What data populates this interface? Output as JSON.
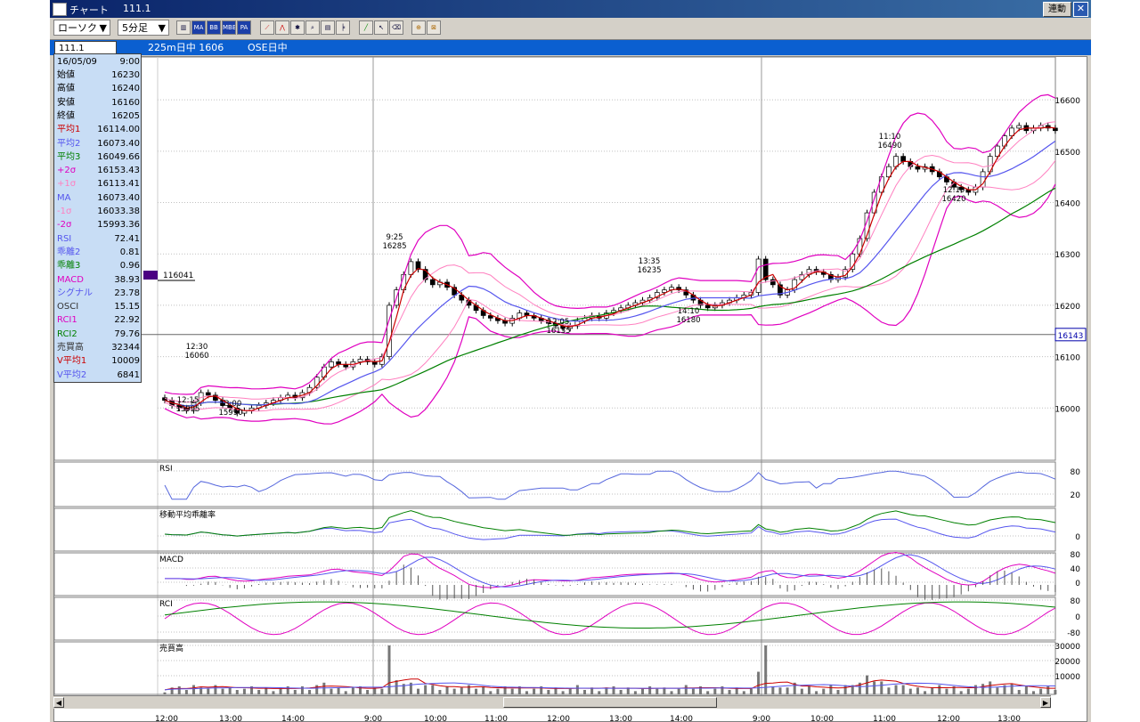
{
  "window": {
    "title": "チャート",
    "symbol": "111.1",
    "linked_button": "連動",
    "close_icon": "close-icon"
  },
  "toolbar": {
    "chart_type": "ローソク",
    "timeframe": "5分足",
    "tool_icons": [
      "period-icon",
      "ma-icon",
      "bb-icon",
      "mbb-icon",
      "pa-icon",
      "line-chart-icon",
      "fibo-icon",
      "zoom-icon",
      "search-icon",
      "print-icon",
      "draw-trend-icon",
      "pointer-icon",
      "eraser-icon",
      "crosshair-icon",
      "clear-drawings-icon"
    ],
    "tool_labels": {
      "ma": "MA",
      "bb": "BB",
      "mbb": "MBB",
      "pa": "PA"
    }
  },
  "subbar": {
    "symbol_input": "111.1",
    "contract": "225m日中 1606",
    "market": "OSE日中"
  },
  "info": {
    "date": "16/05/09",
    "time": "9:00",
    "rows": [
      {
        "k": "始値",
        "v": "16230",
        "color": "#000000"
      },
      {
        "k": "高値",
        "v": "16240",
        "color": "#000000"
      },
      {
        "k": "安値",
        "v": "16160",
        "color": "#000000"
      },
      {
        "k": "終値",
        "v": "16205",
        "color": "#000000"
      },
      {
        "k": "平均1",
        "v": "16114.00",
        "color": "#cc0000"
      },
      {
        "k": "平均2",
        "v": "16073.40",
        "color": "#5555ee"
      },
      {
        "k": "平均3",
        "v": "16049.66",
        "color": "#008000"
      },
      {
        "k": "+2σ",
        "v": "16153.43",
        "color": "#e000c0"
      },
      {
        "k": "+1σ",
        "v": "16113.41",
        "color": "#ff80c0"
      },
      {
        "k": "MA",
        "v": "16073.40",
        "color": "#5555ee"
      },
      {
        "k": "-1σ",
        "v": "16033.38",
        "color": "#ff80c0"
      },
      {
        "k": "-2σ",
        "v": "15993.36",
        "color": "#e000c0"
      },
      {
        "k": "RSI",
        "v": "72.41",
        "color": "#5555ee"
      },
      {
        "k": "乖離2",
        "v": "0.81",
        "color": "#5555ee"
      },
      {
        "k": "乖離3",
        "v": "0.96",
        "color": "#008000"
      },
      {
        "k": "MACD",
        "v": "38.93",
        "color": "#e000c0"
      },
      {
        "k": "シグナル",
        "v": "23.78",
        "color": "#5555ee"
      },
      {
        "k": "OSCI",
        "v": "15.15",
        "color": "#333333"
      },
      {
        "k": "RCI1",
        "v": "22.92",
        "color": "#e000c0"
      },
      {
        "k": "RCI2",
        "v": "79.76",
        "color": "#008000"
      },
      {
        "k": "売買高",
        "v": "32344",
        "color": "#333333"
      },
      {
        "k": "V平均1",
        "v": "10009",
        "color": "#cc0000"
      },
      {
        "k": "V平均2",
        "v": "6841",
        "color": "#5555ee"
      }
    ]
  },
  "chart_data": {
    "type": "candlestick",
    "price_axis": {
      "ticks": [
        "16600",
        "16500",
        "16400",
        "16300",
        "16200",
        "16100",
        "16000"
      ],
      "range": [
        15900,
        16680
      ],
      "current_price": "16143",
      "marker_label": "116041"
    },
    "x_labels": [
      "12:00",
      "13:00",
      "14:00",
      "9:00",
      "10:00",
      "11:00",
      "12:00",
      "13:00",
      "14:00",
      "9:00",
      "10:00",
      "11:00",
      "12:00",
      "13:00"
    ],
    "close_path": [
      16015,
      16005,
      16000,
      15995,
      16010,
      16030,
      16025,
      16015,
      16005,
      16000,
      15990,
      15995,
      16000,
      16005,
      16010,
      16015,
      16020,
      16025,
      16020,
      16030,
      16040,
      16060,
      16080,
      16090,
      16085,
      16080,
      16090,
      16095,
      16090,
      16085,
      16100,
      16200,
      16230,
      16260,
      16285,
      16270,
      16250,
      16240,
      16245,
      16235,
      16220,
      16210,
      16200,
      16190,
      16180,
      16175,
      16170,
      16165,
      16175,
      16185,
      16180,
      16175,
      16170,
      16165,
      16160,
      16155,
      16160,
      16170,
      16175,
      16180,
      16175,
      16185,
      16190,
      16195,
      16200,
      16205,
      16210,
      16215,
      16225,
      16230,
      16235,
      16230,
      16220,
      16210,
      16200,
      16195,
      16200,
      16205,
      16210,
      16215,
      16220,
      16225,
      16290,
      16250,
      16240,
      16220,
      16230,
      16250,
      16260,
      16270,
      16265,
      16260,
      16250,
      16255,
      16270,
      16300,
      16330,
      16380,
      16420,
      16450,
      16470,
      16490,
      16480,
      16470,
      16465,
      16470,
      16460,
      16450,
      16440,
      16430,
      16425,
      16420,
      16430,
      16460,
      16490,
      16510,
      16530,
      16545,
      16550,
      16540,
      16545,
      16550,
      16545,
      16540
    ],
    "annotations": [
      {
        "time": "12:30",
        "price": "16060"
      },
      {
        "time": "12:15",
        "price": "15995"
      },
      {
        "time": "13:00",
        "price": "15990"
      },
      {
        "time": "9:25",
        "price": "16285"
      },
      {
        "time": "13:35",
        "price": "16235"
      },
      {
        "time": "12:05",
        "price": "16155"
      },
      {
        "time": "14:10",
        "price": "16180"
      },
      {
        "time": "11:10",
        "price": "16490"
      },
      {
        "time": "12:10",
        "price": "16420"
      }
    ],
    "panels": [
      {
        "label": "RSI",
        "ticks": [
          "80",
          "20"
        ]
      },
      {
        "label": "移動平均乖離率",
        "ticks": [
          "0"
        ]
      },
      {
        "label": "MACD",
        "ticks": [
          "80",
          "40",
          "0"
        ]
      },
      {
        "label": "RCI",
        "ticks": [
          "80",
          "0",
          "-80"
        ]
      },
      {
        "label": "売買高",
        "ticks": [
          "30000",
          "20000",
          "10000"
        ]
      }
    ],
    "colors": {
      "ma1": "#cc0000",
      "ma2": "#5555ee",
      "ma3": "#008000",
      "bb2": "#e000c0",
      "bb1": "#ff80c0",
      "grid": "#c0c0c0"
    }
  }
}
